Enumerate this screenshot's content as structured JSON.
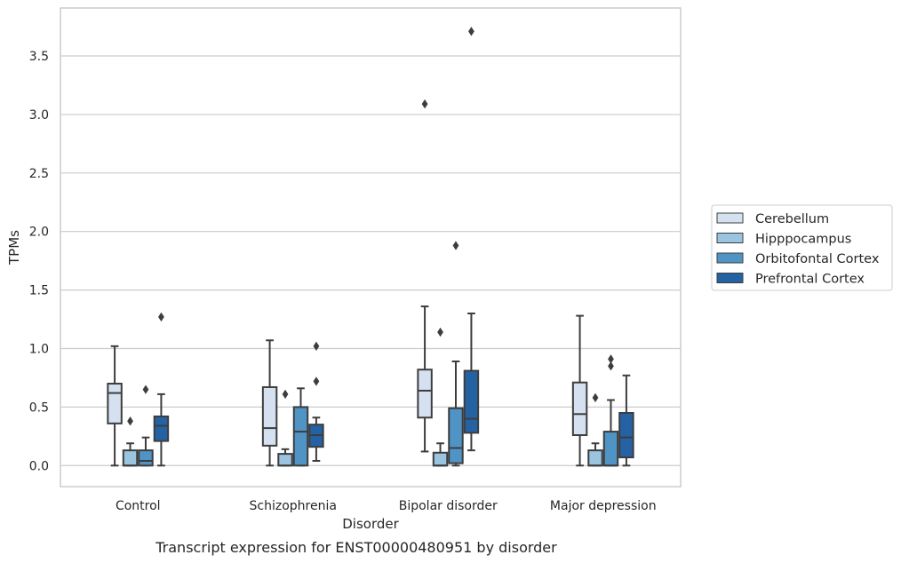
{
  "chart_data": {
    "type": "box",
    "caption": "Transcript expression for ENST00000480951 by disorder",
    "xlabel": "Disorder",
    "ylabel": "TPMs",
    "ylim": [
      -0.18,
      3.91
    ],
    "yticks": [
      "0.0",
      "0.5",
      "1.0",
      "1.5",
      "2.0",
      "2.5",
      "3.0",
      "3.5"
    ],
    "grid": true,
    "legend_position": "right",
    "categories": [
      "Control",
      "Schizophrenia",
      "Bipolar disorder",
      "Major depression"
    ],
    "series": [
      {
        "name": "Cerebellum",
        "color": "#d5e1f1",
        "boxes": [
          {
            "q1": 0.36,
            "median": 0.62,
            "q3": 0.7,
            "whislo": 0.0,
            "whishi": 1.02,
            "fliers": []
          },
          {
            "q1": 0.17,
            "median": 0.32,
            "q3": 0.67,
            "whislo": 0.0,
            "whishi": 1.07,
            "fliers": []
          },
          {
            "q1": 0.41,
            "median": 0.64,
            "q3": 0.82,
            "whislo": 0.12,
            "whishi": 1.36,
            "fliers": [
              3.09
            ]
          },
          {
            "q1": 0.26,
            "median": 0.44,
            "q3": 0.71,
            "whislo": 0.0,
            "whishi": 1.28,
            "fliers": []
          }
        ]
      },
      {
        "name": "Hipppocampus",
        "color": "#9ac4df",
        "boxes": [
          {
            "q1": 0.0,
            "median": 0.0,
            "q3": 0.13,
            "whislo": 0.0,
            "whishi": 0.19,
            "fliers": [
              0.38
            ]
          },
          {
            "q1": 0.0,
            "median": 0.0,
            "q3": 0.1,
            "whislo": 0.0,
            "whishi": 0.14,
            "fliers": [
              0.61
            ]
          },
          {
            "q1": 0.0,
            "median": 0.0,
            "q3": 0.11,
            "whislo": 0.0,
            "whishi": 0.19,
            "fliers": [
              1.14
            ]
          },
          {
            "q1": 0.0,
            "median": 0.0,
            "q3": 0.13,
            "whislo": 0.0,
            "whishi": 0.19,
            "fliers": [
              0.58
            ]
          }
        ]
      },
      {
        "name": "Orbitofontal Cortex",
        "color": "#5094c6",
        "boxes": [
          {
            "q1": 0.0,
            "median": 0.04,
            "q3": 0.13,
            "whislo": 0.0,
            "whishi": 0.24,
            "fliers": [
              0.65
            ]
          },
          {
            "q1": 0.0,
            "median": 0.29,
            "q3": 0.5,
            "whislo": 0.0,
            "whishi": 0.66,
            "fliers": []
          },
          {
            "q1": 0.02,
            "median": 0.15,
            "q3": 0.49,
            "whislo": 0.0,
            "whishi": 0.89,
            "fliers": [
              1.88
            ]
          },
          {
            "q1": 0.0,
            "median": 0.0,
            "q3": 0.29,
            "whislo": 0.0,
            "whishi": 0.56,
            "fliers": [
              0.85,
              0.91
            ]
          }
        ]
      },
      {
        "name": "Prefrontal Cortex",
        "color": "#2462a3",
        "boxes": [
          {
            "q1": 0.21,
            "median": 0.34,
            "q3": 0.42,
            "whislo": 0.0,
            "whishi": 0.61,
            "fliers": [
              1.27
            ]
          },
          {
            "q1": 0.16,
            "median": 0.26,
            "q3": 0.35,
            "whislo": 0.04,
            "whishi": 0.41,
            "fliers": [
              0.72,
              1.02
            ]
          },
          {
            "q1": 0.28,
            "median": 0.4,
            "q3": 0.81,
            "whislo": 0.13,
            "whishi": 1.3,
            "fliers": [
              3.71
            ]
          },
          {
            "q1": 0.07,
            "median": 0.24,
            "q3": 0.45,
            "whislo": 0.0,
            "whishi": 0.77,
            "fliers": []
          }
        ]
      }
    ]
  }
}
